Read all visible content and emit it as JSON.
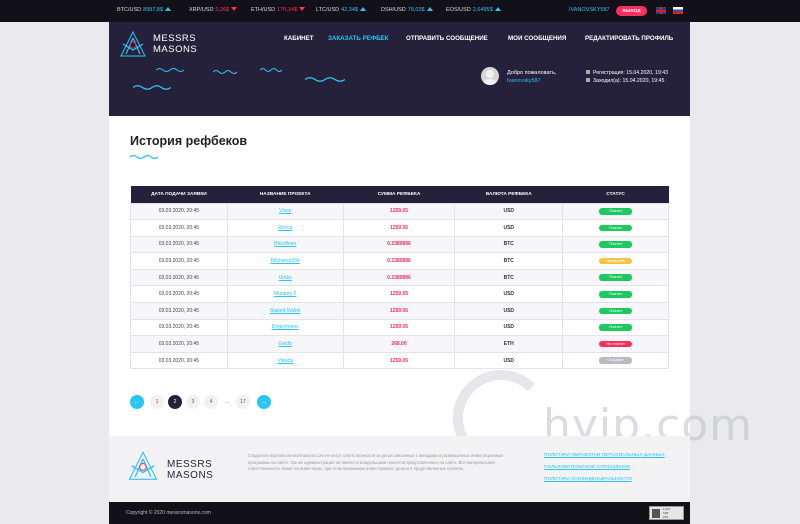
{
  "ticker": [
    {
      "pair": "BTC/USD",
      "value": "8987,8$",
      "trend": "up"
    },
    {
      "pair": "XRP/USD",
      "value": "0,26$",
      "trend": "down"
    },
    {
      "pair": "ETH/USD",
      "value": "170,14$",
      "trend": "down"
    },
    {
      "pair": "LTC/USD",
      "value": "42,34$",
      "trend": "up"
    },
    {
      "pair": "DSH/USD",
      "value": "75,03$",
      "trend": "up"
    },
    {
      "pair": "EOS/USD",
      "value": "2,6495$",
      "trend": "up"
    }
  ],
  "top_user": "IVANOVSKY587",
  "logout_label": "ВЫХОД",
  "brand": {
    "line1": "MESSRS",
    "line2": "MASONS"
  },
  "nav": [
    {
      "label": "КАБИНЕТ",
      "active": false
    },
    {
      "label": "ЗАКАЗАТЬ РЕФБЕК",
      "active": true
    },
    {
      "label": "ОТПРАВИТЬ СООБЩЕНИЕ",
      "active": false
    },
    {
      "label": "МОИ СООБЩЕНИЯ",
      "active": false
    },
    {
      "label": "РЕДАКТИРОВАТЬ ПРОФИЛЬ",
      "active": false
    }
  ],
  "welcome": {
    "greeting": "Добро пожаловать,",
    "username": "Ivanovsky587"
  },
  "meta": {
    "registration": "Регистрация: 15.04.2020, 19:43",
    "last_login": "Заходил(а): 15.04.2020, 19:45"
  },
  "page_title": "История рефбеков",
  "table": {
    "headers": [
      "ДАТА ПОДАЧИ ЗАЯВКИ",
      "НАЗВАНИЕ ПРОЕКТА",
      "СУММА РЕФБЕКА",
      "ВАЛЮТА РЕФБЕКА",
      "СТАТУС"
    ],
    "rows": [
      {
        "date": "03.03.2020, 20:45",
        "project": "Vises",
        "amount": "1259.05",
        "currency": "USD",
        "status": "Платит",
        "status_color": "#1dc95f"
      },
      {
        "date": "03.03.2020, 20:45",
        "project": "Rlorca",
        "amount": "1259.05",
        "currency": "USD",
        "status": "Платит",
        "status_color": "#1dc95f"
      },
      {
        "date": "03.03.2020, 20:45",
        "project": "Bitcoffeen",
        "amount": "0.2389896",
        "currency": "BTC",
        "status": "Платит",
        "status_color": "#1dc95f"
      },
      {
        "date": "03.03.2020, 20:45",
        "project": "Bitshares334",
        "amount": "0.2389896",
        "currency": "BTC",
        "status": "Ожидание",
        "status_color": "#f3c344"
      },
      {
        "date": "03.03.2020, 20:45",
        "project": "Umbs",
        "amount": "0.2389896",
        "currency": "BTC",
        "status": "Платит",
        "status_color": "#1dc95f"
      },
      {
        "date": "03.03.2020, 20:45",
        "project": "Monarty 2",
        "amount": "1259.05",
        "currency": "USD",
        "status": "Платит",
        "status_color": "#1dc95f"
      },
      {
        "date": "03.03.2020, 20:45",
        "project": "Staked Wallet",
        "amount": "1259.05",
        "currency": "USD",
        "status": "Платит",
        "status_color": "#1dc95f"
      },
      {
        "date": "03.03.2020, 20:45",
        "project": "Degenmens",
        "amount": "1259.05",
        "currency": "USD",
        "status": "Платит",
        "status_color": "#1dc95f"
      },
      {
        "date": "03.03.2020, 20:45",
        "project": "Goldb",
        "amount": "268.00",
        "currency": "ETH",
        "status": "Не платит",
        "status_color": "#ff2e5c"
      },
      {
        "date": "03.03.2020, 20:45",
        "project": "Vitrada",
        "amount": "1259.05",
        "currency": "USD",
        "status": "Ожидает",
        "status_color": "#b9b9c2"
      }
    ]
  },
  "pagination": {
    "prev": "←",
    "next": "→",
    "pages": [
      "1",
      "2",
      "3",
      "4",
      "...",
      "17"
    ],
    "current": "2"
  },
  "watermark": "hyip.com",
  "footer": {
    "description": "Создатели портала messrsmasons.com не несут ответственности за риски связанные с вкладами в размещенные инвестиционные программы на сайте. Так же администрация не является владельцами проектов представленных на сайте. Вся материальная ответственность лежит на инвесторах, при этом принимаем инвестировать деньги в представленные проекты.",
    "links": [
      "ПОЛИТИКА ОБРАБОТКИ ПЕРСОНАЛЬНЫХ ДАННЫХ",
      "ПОЛЬЗОВАТЕЛЬСКОЕ СОГЛАШЕНИЕ",
      "ПОЛИТИКА КОНФИДЕНЦИАЛЬНОСТИ"
    ],
    "copyright": "Copyright © 2020 messrsmasons.com",
    "counter": [
      "1 927",
      "198",
      "270"
    ]
  },
  "colors": {
    "accent": "#29c5f6",
    "danger": "#ff2e5c",
    "dark": "#26213a",
    "success": "#1dc95f"
  }
}
